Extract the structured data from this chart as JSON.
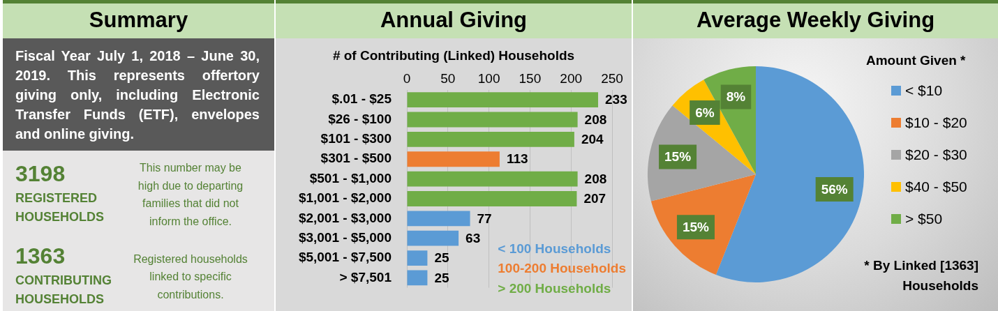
{
  "chart_data": [
    {
      "type": "other",
      "title": "Summary",
      "annotations": [
        "Fiscal Year July 1, 2018 – June 30, 2019. This represents offertory giving only, including Electronic Transfer Funds (ETF), envelopes and online giving.",
        "3198",
        "REGISTERED HOUSEHOLDS",
        "This number may be high due to departing families that did not inform the office.",
        "1363",
        "CONTRIBUTING HOUSEHOLDS",
        "Registered households linked to specific contributions."
      ]
    },
    {
      "type": "bar",
      "title": "Annual Giving",
      "subtitle": "# of Contributing (Linked) Households",
      "orientation": "horizontal",
      "categories": [
        "$.01 - $25",
        "$26 - $100",
        "$101 - $300",
        "$301 - $500",
        "$501 - $1,000",
        "$1,001 - $2,000",
        "$2,001 - $3,000",
        "$3,001 - $5,000",
        "$5,001 - $7,500",
        "> $7,501"
      ],
      "series": [
        {
          "name": "< 100 Households",
          "color": "#5b9bd5",
          "values": [
            null,
            null,
            null,
            null,
            null,
            null,
            77,
            63,
            25,
            25
          ]
        },
        {
          "name": "100-200 Households",
          "color": "#ed7d31",
          "values": [
            null,
            null,
            null,
            113,
            null,
            null,
            null,
            null,
            null,
            null
          ]
        },
        {
          "name": "> 200 Households",
          "color": "#70ad47",
          "values": [
            233,
            208,
            204,
            null,
            208,
            207,
            null,
            null,
            null,
            null
          ]
        }
      ],
      "xlim": [
        0,
        250
      ],
      "xticks": [
        0,
        50,
        100,
        150,
        200,
        250
      ],
      "grid": "x",
      "data_labels": true,
      "legend": "bottom right"
    },
    {
      "type": "pie",
      "title": "Average Weekly Giving",
      "categories": [
        "< $10",
        "$10 - $20",
        "$20 - $30",
        "$40 - $50",
        "> $50"
      ],
      "values": [
        56,
        15,
        15,
        6,
        8
      ],
      "colors": [
        "#5b9bd5",
        "#ed7d31",
        "#a5a5a5",
        "#ffc000",
        "#70ad47"
      ],
      "value_labels": [
        "56%",
        "15%",
        "15%",
        "6%",
        "8%"
      ],
      "legend": "right",
      "legend_title": "Amount Given *",
      "annotations": [
        "* By Linked [1363] Households"
      ]
    }
  ]
}
